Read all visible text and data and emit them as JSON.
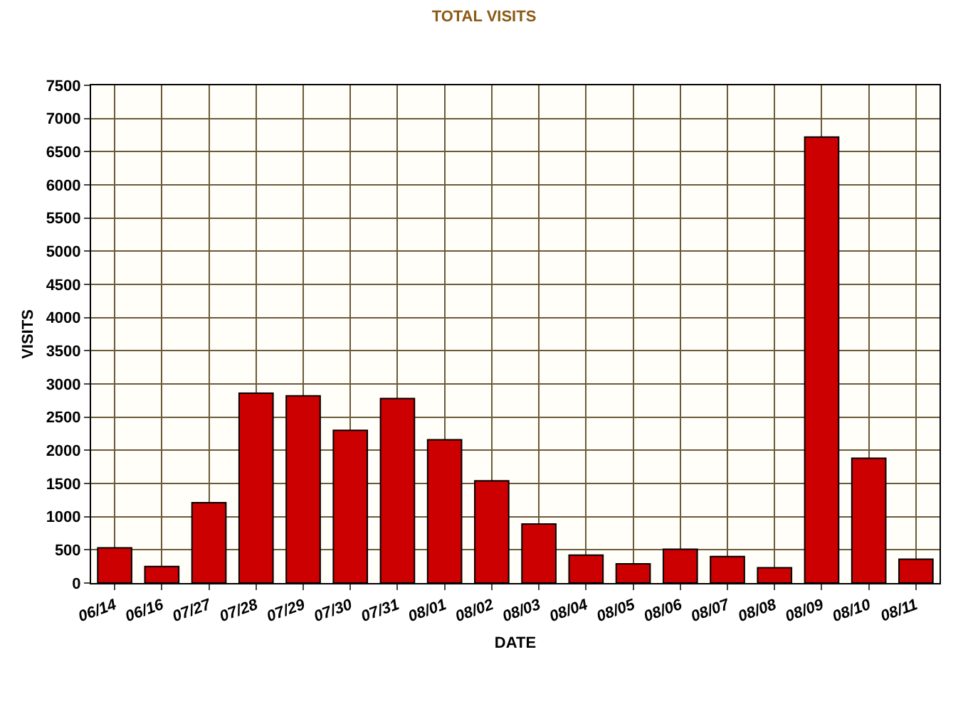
{
  "chart_data": {
    "type": "bar",
    "title": "TOTAL VISITS",
    "xlabel": "DATE",
    "ylabel": "VISITS",
    "categories": [
      "06/14",
      "06/16",
      "07/27",
      "07/28",
      "07/29",
      "07/30",
      "07/31",
      "08/01",
      "08/02",
      "08/03",
      "08/04",
      "08/05",
      "08/06",
      "08/07",
      "08/08",
      "08/09",
      "08/10",
      "08/11"
    ],
    "values": [
      530,
      250,
      1210,
      2860,
      2820,
      2300,
      2780,
      2160,
      1540,
      890,
      420,
      290,
      510,
      400,
      230,
      6720,
      1880,
      360
    ],
    "color": "#cc0000",
    "ylim": [
      0,
      7500
    ],
    "yticks": [
      0,
      500,
      1000,
      1500,
      2000,
      2500,
      3000,
      3500,
      4000,
      4500,
      5000,
      5500,
      6000,
      6500,
      7000,
      7500
    ],
    "grid": true
  }
}
